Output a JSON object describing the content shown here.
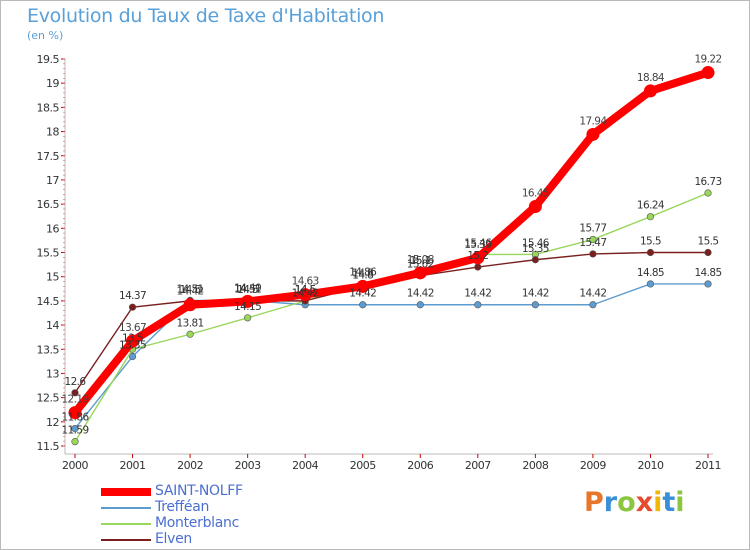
{
  "title": "Evolution du Taux de Taxe d'Habitation",
  "unit": "(en %)",
  "logo": {
    "letters": [
      "P",
      "r",
      "o",
      "x",
      "i",
      "t",
      "i"
    ],
    "colors": [
      "#e8762a",
      "#3a8fd6",
      "#8cc63e",
      "#e84a2a",
      "#f2b705",
      "#3a8fd6",
      "#8cc63e"
    ]
  },
  "chart_data": {
    "type": "line",
    "x": [
      "2000",
      "2001",
      "2002",
      "2003",
      "2004",
      "2005",
      "2006",
      "2007",
      "2008",
      "2009",
      "2010",
      "2011"
    ],
    "ylim": [
      11.5,
      19.5
    ],
    "yticks": [
      "11.5",
      "12",
      "12.5",
      "13",
      "13.5",
      "14",
      "14.5",
      "15",
      "15.5",
      "16",
      "16.5",
      "17",
      "17.5",
      "18",
      "18.5",
      "19",
      "19.5"
    ],
    "grid": false,
    "legend_position": "bottom-left",
    "series": [
      {
        "name": "SAINT-NOLFF",
        "color": "#ff0000",
        "values": [
          12.19,
          13.67,
          14.42,
          14.49,
          14.63,
          14.8,
          15.08,
          15.39,
          16.45,
          17.94,
          18.84,
          19.22
        ],
        "labels": [
          "12.19",
          "13.67",
          "14.42",
          "14.49",
          "14.63",
          "14.8",
          "15.08",
          "15.39",
          "16.45",
          "17.94",
          "18.84",
          "19.22"
        ]
      },
      {
        "name": "Trefféan",
        "color": "#5e9ccf",
        "values": [
          11.86,
          13.35,
          14.51,
          14.51,
          14.42,
          14.42,
          14.42,
          14.42,
          14.42,
          14.42,
          14.85,
          14.85
        ],
        "labels": [
          "11.86",
          "13.35",
          "14.51",
          "14.51",
          "14.42",
          "14.42",
          "14.42",
          "14.42",
          "14.42",
          "14.42",
          "14.85",
          "14.85"
        ]
      },
      {
        "name": "Monterblanc",
        "color": "#99d65c",
        "values": [
          11.59,
          13.5,
          13.81,
          14.15,
          14.5,
          14.86,
          15.1,
          15.46,
          15.46,
          15.77,
          16.24,
          16.73
        ],
        "labels": [
          "11.59",
          "13.5",
          "13.81",
          "14.15",
          "14.5",
          "14.86",
          "15.1",
          "15.46",
          "15.46",
          "15.77",
          "16.24",
          "16.73"
        ]
      },
      {
        "name": "Elven",
        "color": "#7a1f1f",
        "values": [
          12.6,
          14.37,
          14.5,
          14.5,
          14.5,
          14.8,
          15.02,
          15.2,
          15.35,
          15.47,
          15.5,
          15.5
        ],
        "labels": [
          "12.6",
          "14.37",
          "14.5",
          "14.5",
          "14.5",
          "14.8",
          "15.02",
          "15.2",
          "15.35",
          "15.47",
          "15.5",
          "15.5"
        ]
      }
    ]
  }
}
